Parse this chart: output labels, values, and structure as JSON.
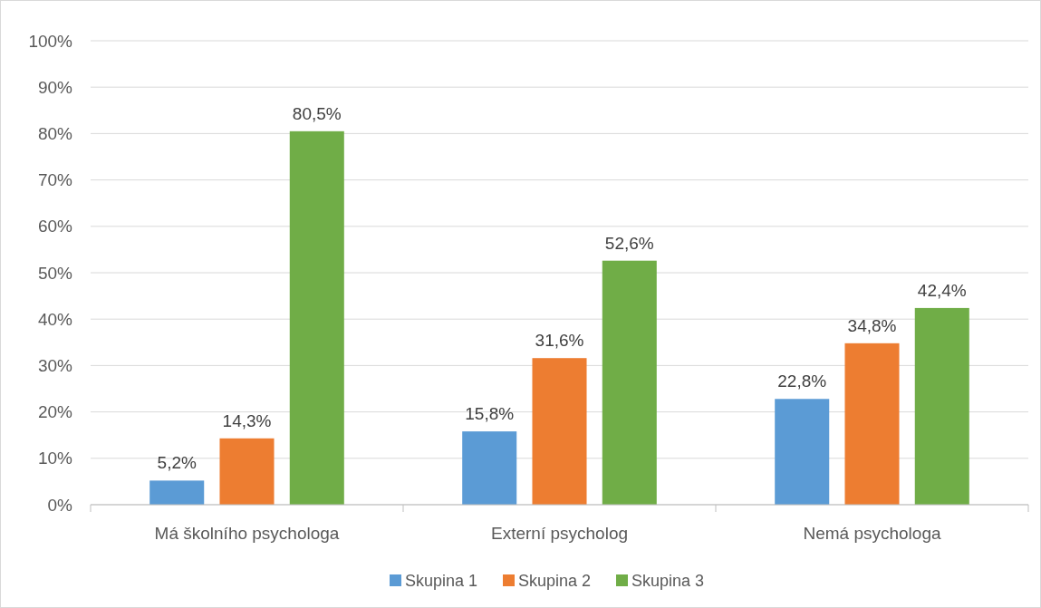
{
  "chart_data": {
    "type": "bar",
    "categories": [
      "Má školního psychologa",
      "Externí psycholog",
      "Nemá psychologa"
    ],
    "series": [
      {
        "name": "Skupina 1",
        "color": "#5b9bd5",
        "values": [
          5.2,
          15.8,
          22.8
        ],
        "value_labels": [
          "5,2%",
          "15,8%",
          "22,8%"
        ]
      },
      {
        "name": "Skupina 2",
        "color": "#ed7d31",
        "values": [
          14.3,
          31.6,
          34.8
        ],
        "value_labels": [
          "14,3%",
          "31,6%",
          "34,8%"
        ]
      },
      {
        "name": "Skupina 3",
        "color": "#70ad47",
        "values": [
          80.5,
          52.6,
          42.4
        ],
        "value_labels": [
          "80,5%",
          "52,6%",
          "42,4%"
        ]
      }
    ],
    "ylim": [
      0,
      100
    ],
    "yticks": [
      {
        "value": 0,
        "label": "0%"
      },
      {
        "value": 10,
        "label": "10%"
      },
      {
        "value": 20,
        "label": "20%"
      },
      {
        "value": 30,
        "label": "30%"
      },
      {
        "value": 40,
        "label": "40%"
      },
      {
        "value": 50,
        "label": "50%"
      },
      {
        "value": 60,
        "label": "60%"
      },
      {
        "value": 70,
        "label": "70%"
      },
      {
        "value": 80,
        "label": "80%"
      },
      {
        "value": 90,
        "label": "90%"
      },
      {
        "value": 100,
        "label": "100%"
      }
    ],
    "grid": "y",
    "legend": "bottom"
  }
}
